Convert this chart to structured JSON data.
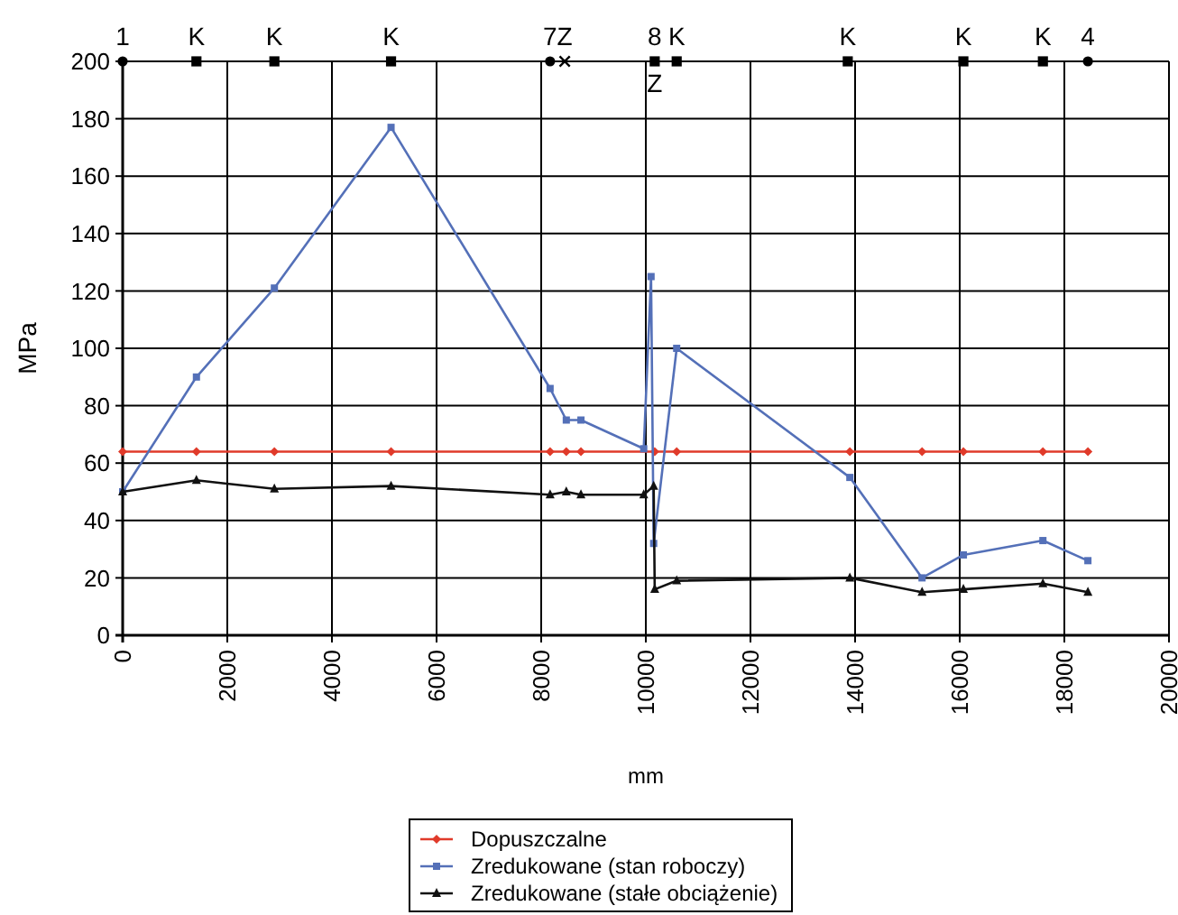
{
  "chart_data": {
    "type": "line",
    "xlabel": "mm",
    "ylabel": "MPa",
    "xlim": [
      0,
      20000
    ],
    "xticks": [
      0,
      2000,
      4000,
      6000,
      8000,
      10000,
      12000,
      14000,
      16000,
      18000,
      20000
    ],
    "ylim": [
      0,
      200
    ],
    "yticks": [
      0,
      20,
      40,
      60,
      80,
      100,
      120,
      140,
      160,
      180,
      200
    ],
    "grid": true,
    "legend": "bottom",
    "line_style": "solid",
    "series": [
      {
        "name": "Dopuszczalne",
        "color": "#e03a2a",
        "marker": "diamond",
        "x": [
          0,
          1410,
          2900,
          5130,
          8170,
          8480,
          8760,
          10170,
          10590,
          13900,
          15280,
          16070,
          17590,
          18450
        ],
        "values": [
          64,
          64,
          64,
          64,
          64,
          64,
          64,
          64,
          64,
          64,
          64,
          64,
          64,
          64
        ]
      },
      {
        "name": "Zredukowane (stan roboczy)",
        "color": "#5470b8",
        "marker": "square",
        "x": [
          0,
          1410,
          2900,
          5130,
          8170,
          8480,
          8760,
          9960,
          10100,
          10150,
          10590,
          13900,
          15280,
          16070,
          17590,
          18450
        ],
        "values": [
          50,
          90,
          121,
          177,
          86,
          75,
          75,
          65,
          125,
          32,
          100,
          55,
          20,
          28,
          33,
          26
        ]
      },
      {
        "name": "Zredukowane (stałe obciążenie)",
        "color": "#111111",
        "marker": "triangle",
        "x": [
          0,
          1410,
          2900,
          5130,
          8170,
          8480,
          8760,
          9960,
          10150,
          10170,
          10590,
          13900,
          15280,
          16070,
          17590,
          18450
        ],
        "values": [
          50,
          54,
          51,
          52,
          49,
          50,
          49,
          49,
          52,
          16,
          19,
          20,
          15,
          16,
          18,
          15
        ]
      },
      {
        "type": "scatter",
        "color": "#000000",
        "marker": "circle",
        "x": [
          0,
          8170,
          18450
        ],
        "values": [
          200,
          200,
          200
        ]
      },
      {
        "type": "scatter",
        "color": "#000000",
        "marker": "square",
        "x": [
          1410,
          2900,
          5130,
          10170,
          10590,
          13860,
          16070,
          17590
        ],
        "values": [
          200,
          200,
          200,
          200,
          200,
          200,
          200,
          200
        ]
      },
      {
        "type": "scatter",
        "color": "#000000",
        "marker": "cross",
        "x": [
          8450
        ],
        "values": [
          200
        ]
      }
    ],
    "annotations": [
      {
        "text": "1",
        "x": 0,
        "y": 200
      },
      {
        "text": "K",
        "x": 1410,
        "y": 200
      },
      {
        "text": "K",
        "x": 2900,
        "y": 200
      },
      {
        "text": "K",
        "x": 5130,
        "y": 200
      },
      {
        "text": "7",
        "x": 8170,
        "y": 200
      },
      {
        "text": "Z",
        "x": 8450,
        "y": 200
      },
      {
        "text": "8",
        "x": 10170,
        "y": 200
      },
      {
        "text": "Z",
        "x": 10170,
        "y": 200
      },
      {
        "text": "K",
        "x": 10590,
        "y": 200
      },
      {
        "text": "K",
        "x": 13860,
        "y": 200
      },
      {
        "text": "K",
        "x": 16070,
        "y": 200
      },
      {
        "text": "K",
        "x": 17590,
        "y": 200
      },
      {
        "text": "4",
        "x": 18450,
        "y": 200
      }
    ]
  }
}
